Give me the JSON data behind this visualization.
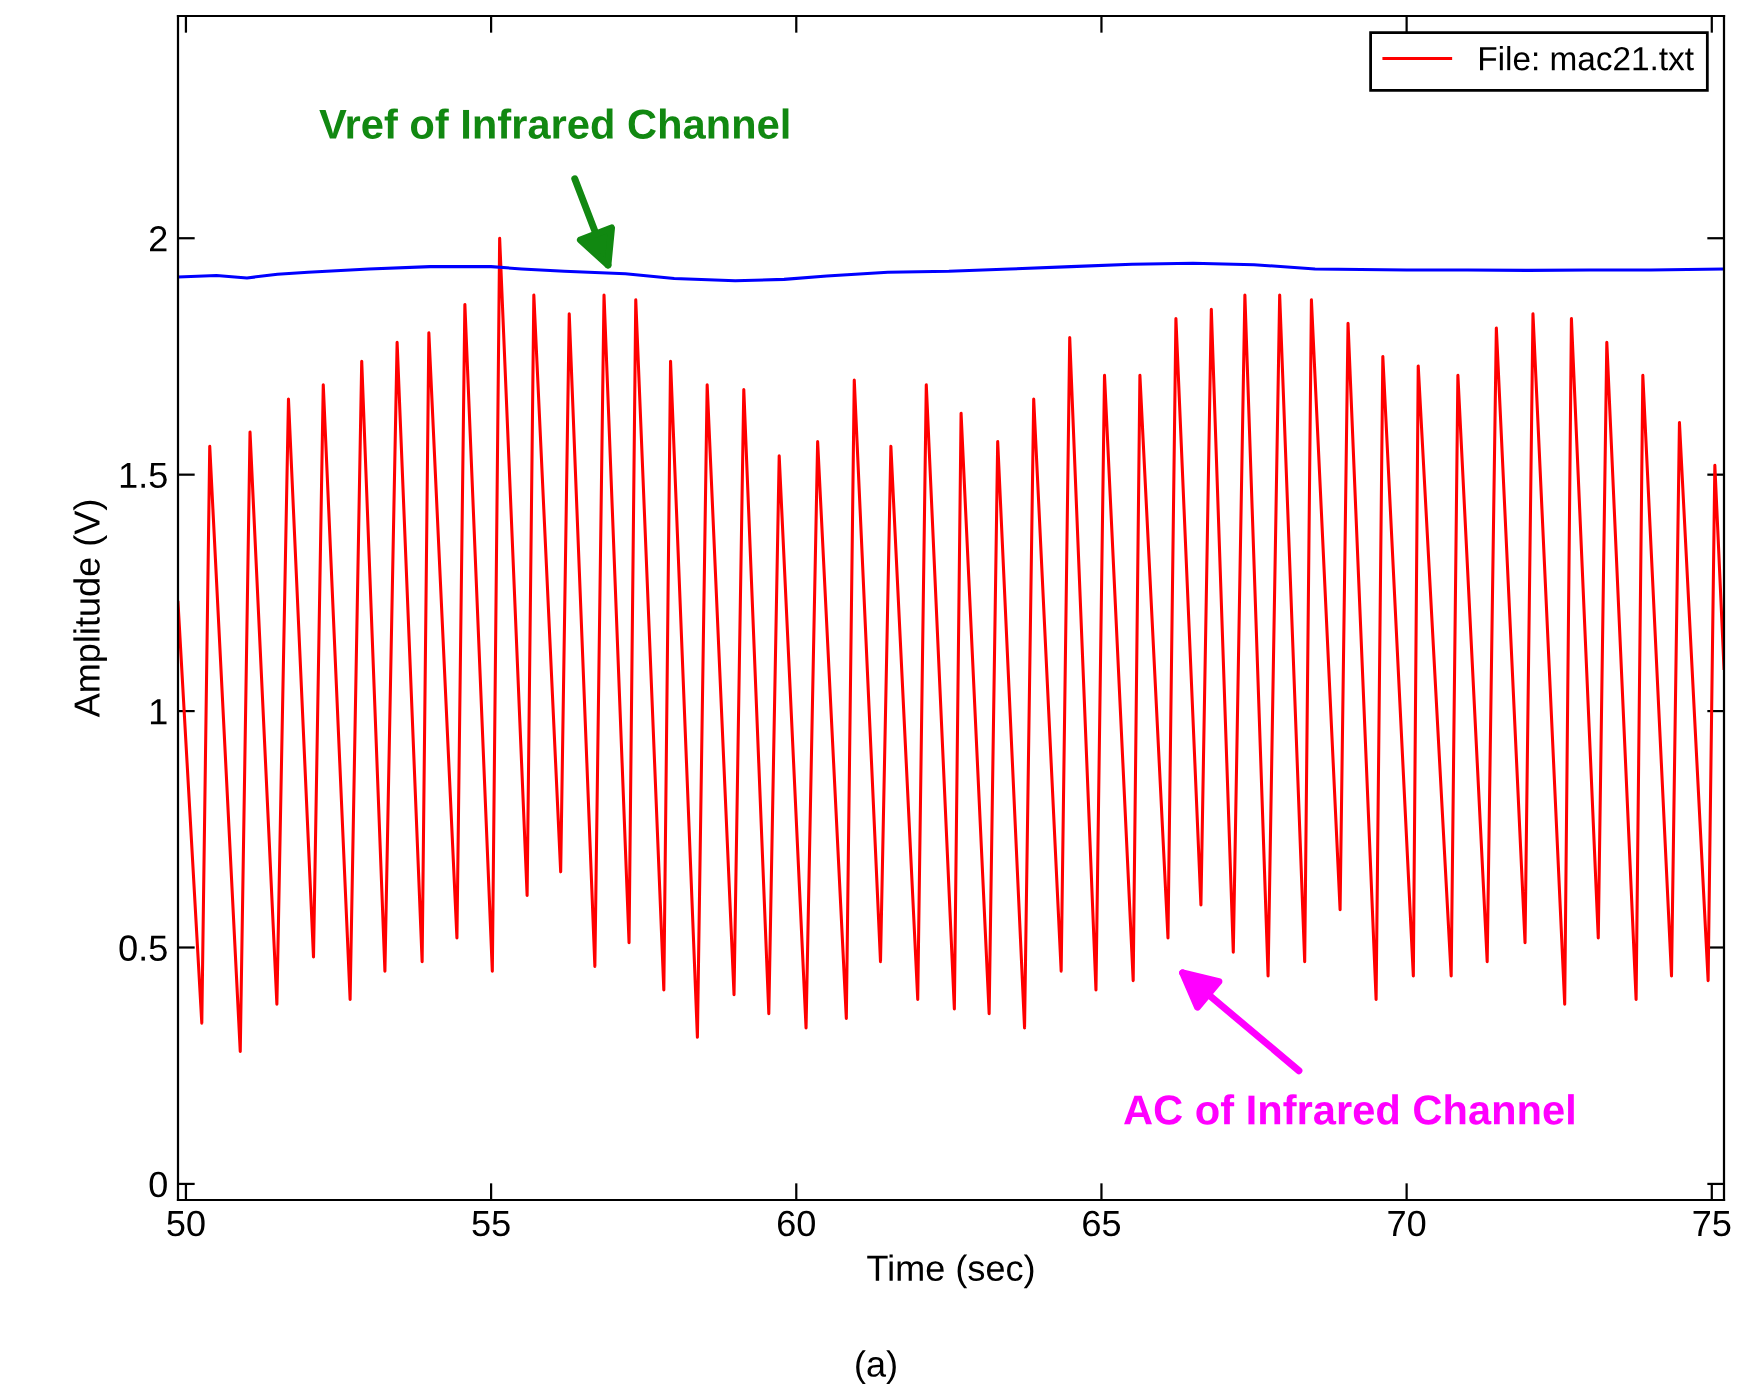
{
  "chart_data": {
    "type": "line",
    "xlabel": "Time (sec)",
    "ylabel": "Amplitude (V)",
    "xlim": [
      49.87,
      75.2
    ],
    "ylim": [
      -0.034,
      2.47
    ],
    "xticks": [
      50,
      55,
      60,
      65,
      70,
      75
    ],
    "yticks": [
      0,
      0.5,
      1,
      1.5,
      2
    ],
    "grid": false,
    "legend": "top right",
    "line_style": "solid",
    "marker": "none",
    "series": [
      {
        "name": "File: mac21.txt",
        "color": "#ff0000",
        "x": [
          49.87,
          50.26,
          50.39,
          50.89,
          51.05,
          51.49,
          51.68,
          52.09,
          52.25,
          52.69,
          52.88,
          53.26,
          53.46,
          53.87,
          53.98,
          54.44,
          54.57,
          55.02,
          55.14,
          55.59,
          55.7,
          56.14,
          56.28,
          56.7,
          56.85,
          57.26,
          57.37,
          57.83,
          57.94,
          58.38,
          58.54,
          58.98,
          59.14,
          59.55,
          59.72,
          60.16,
          60.35,
          60.82,
          60.95,
          61.38,
          61.55,
          61.99,
          62.13,
          62.59,
          62.7,
          63.16,
          63.3,
          63.74,
          63.89,
          64.34,
          64.48,
          64.91,
          65.05,
          65.52,
          65.63,
          66.09,
          66.22,
          66.63,
          66.8,
          67.16,
          67.35,
          67.73,
          67.92,
          68.33,
          68.44,
          68.91,
          69.04,
          69.5,
          69.61,
          70.11,
          70.19,
          70.73,
          70.84,
          71.32,
          71.47,
          71.94,
          72.07,
          72.59,
          72.7,
          73.14,
          73.28,
          73.76,
          73.87,
          74.34,
          74.47,
          74.94,
          75.05,
          75.2
        ],
        "values": [
          1.23,
          0.34,
          1.56,
          0.28,
          1.59,
          0.38,
          1.66,
          0.48,
          1.69,
          0.39,
          1.74,
          0.45,
          1.78,
          0.47,
          1.8,
          0.52,
          1.86,
          0.45,
          2.0,
          0.61,
          1.88,
          0.66,
          1.84,
          0.46,
          1.88,
          0.51,
          1.87,
          0.41,
          1.74,
          0.31,
          1.69,
          0.4,
          1.68,
          0.36,
          1.54,
          0.33,
          1.57,
          0.35,
          1.7,
          0.47,
          1.56,
          0.39,
          1.69,
          0.37,
          1.63,
          0.36,
          1.57,
          0.33,
          1.66,
          0.45,
          1.79,
          0.41,
          1.71,
          0.43,
          1.71,
          0.52,
          1.83,
          0.59,
          1.85,
          0.49,
          1.88,
          0.44,
          1.88,
          0.47,
          1.87,
          0.58,
          1.82,
          0.39,
          1.75,
          0.44,
          1.73,
          0.44,
          1.71,
          0.47,
          1.81,
          0.51,
          1.84,
          0.38,
          1.83,
          0.52,
          1.78,
          0.39,
          1.71,
          0.44,
          1.61,
          0.43,
          1.52,
          1.09
        ]
      },
      {
        "color": "#0000ff",
        "x": [
          49.87,
          50.5,
          51.0,
          51.5,
          52.0,
          53.0,
          54.0,
          55.0,
          55.5,
          56.2,
          57.2,
          58.0,
          59.0,
          59.8,
          60.5,
          61.5,
          62.5,
          63.5,
          64.5,
          65.5,
          66.5,
          67.5,
          68.5,
          70.0,
          71.0,
          72.0,
          73.0,
          74.0,
          75.2
        ],
        "values": [
          1.918,
          1.921,
          1.916,
          1.924,
          1.928,
          1.935,
          1.94,
          1.94,
          1.935,
          1.93,
          1.925,
          1.915,
          1.91,
          1.913,
          1.92,
          1.928,
          1.93,
          1.935,
          1.94,
          1.945,
          1.947,
          1.944,
          1.935,
          1.933,
          1.933,
          1.932,
          1.933,
          1.933,
          1.935
        ]
      }
    ],
    "annotations": [
      {
        "text": "Vref of Infrared Channel",
        "x": 56.96,
        "y": 1.928
      },
      "AC of Infrared Channel",
      "(a)"
    ]
  }
}
